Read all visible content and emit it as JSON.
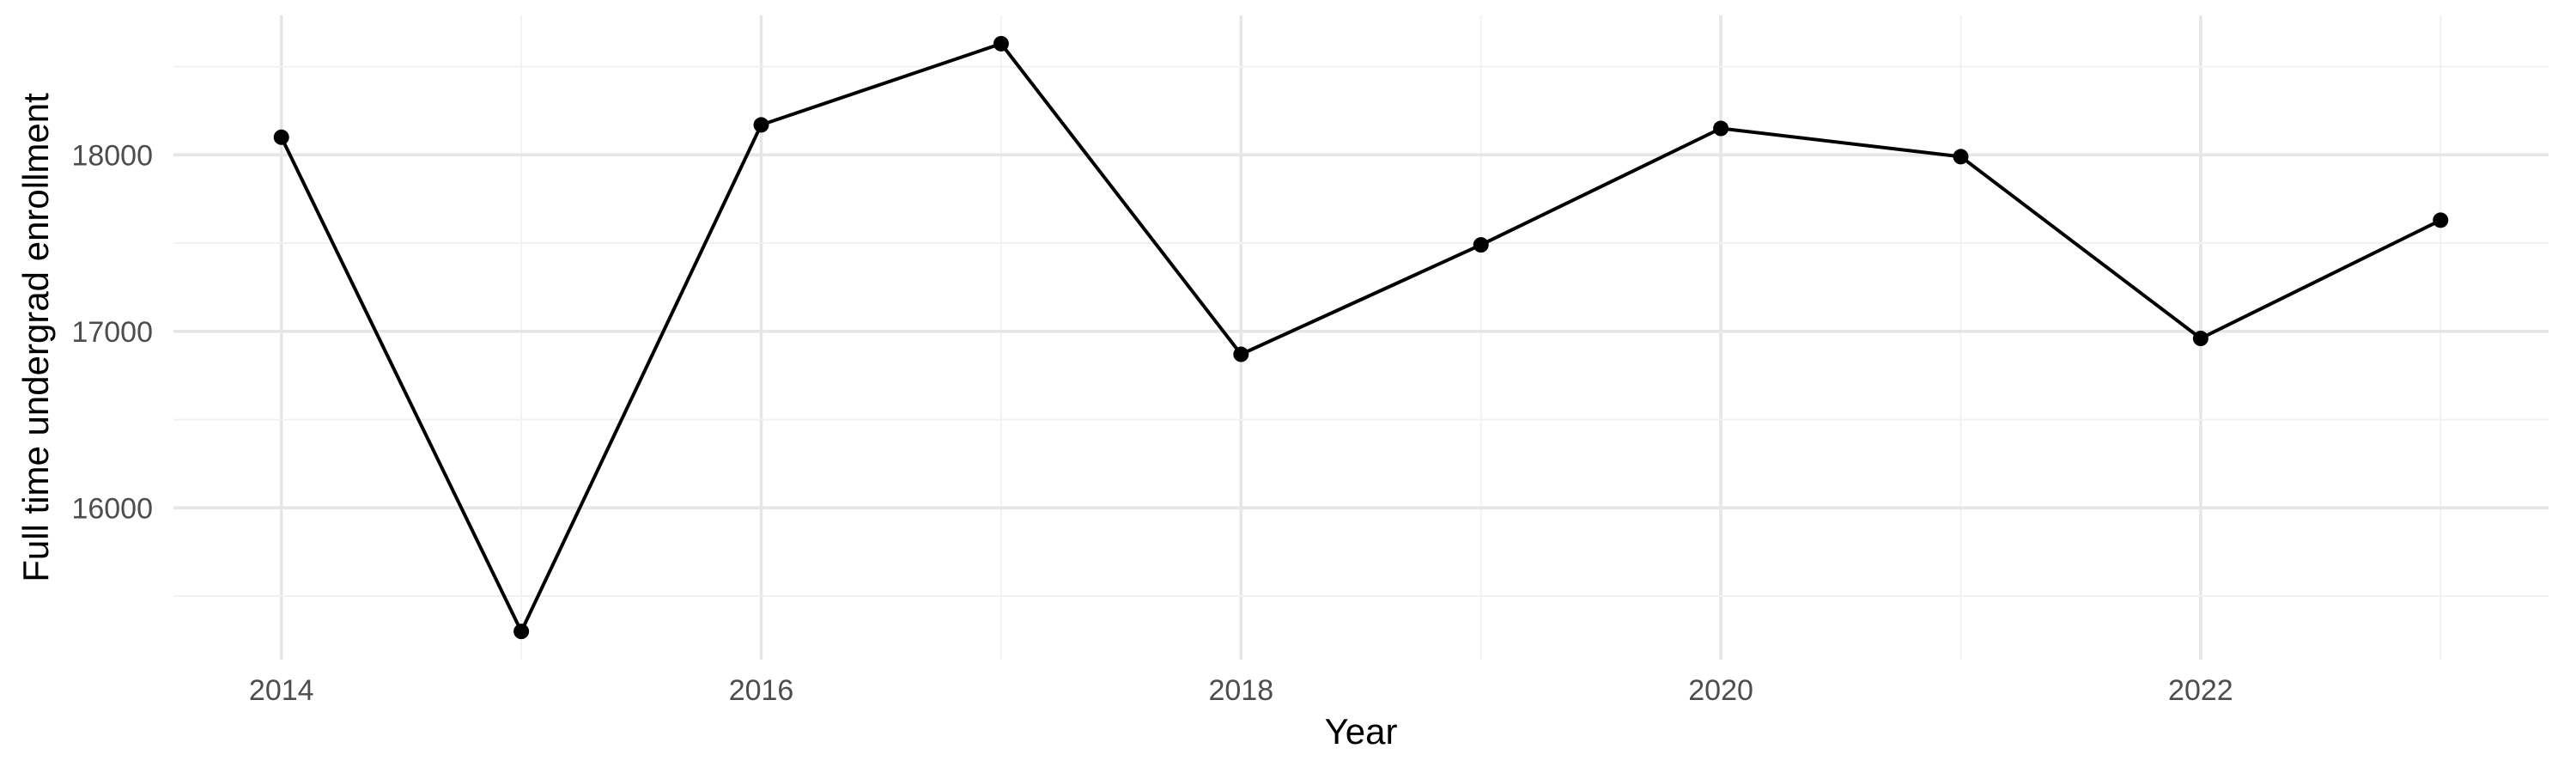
{
  "chart_data": {
    "type": "line",
    "title": "",
    "xlabel": "Year",
    "ylabel": "Full time undergrad enrollment",
    "x": [
      2014,
      2015,
      2016,
      2017,
      2018,
      2019,
      2020,
      2021,
      2022,
      2023
    ],
    "series": [
      {
        "values": [
          18100,
          15300,
          18170,
          18630,
          16870,
          17490,
          18150,
          17990,
          16960,
          17630
        ],
        "color": "#000000",
        "markers": true
      }
    ],
    "x_ticks": [
      2014,
      2016,
      2018,
      2020,
      2022
    ],
    "x_tick_labels": [
      "2014",
      "2016",
      "2018",
      "2020",
      "2022"
    ],
    "y_ticks": [
      16000,
      17000,
      18000
    ],
    "y_tick_labels": [
      "16000",
      "17000",
      "18000"
    ],
    "xlim": [
      2013.55,
      2023.45
    ],
    "ylim": [
      15140,
      18790
    ],
    "grid": true,
    "legend": "none",
    "theme": "minimal"
  }
}
